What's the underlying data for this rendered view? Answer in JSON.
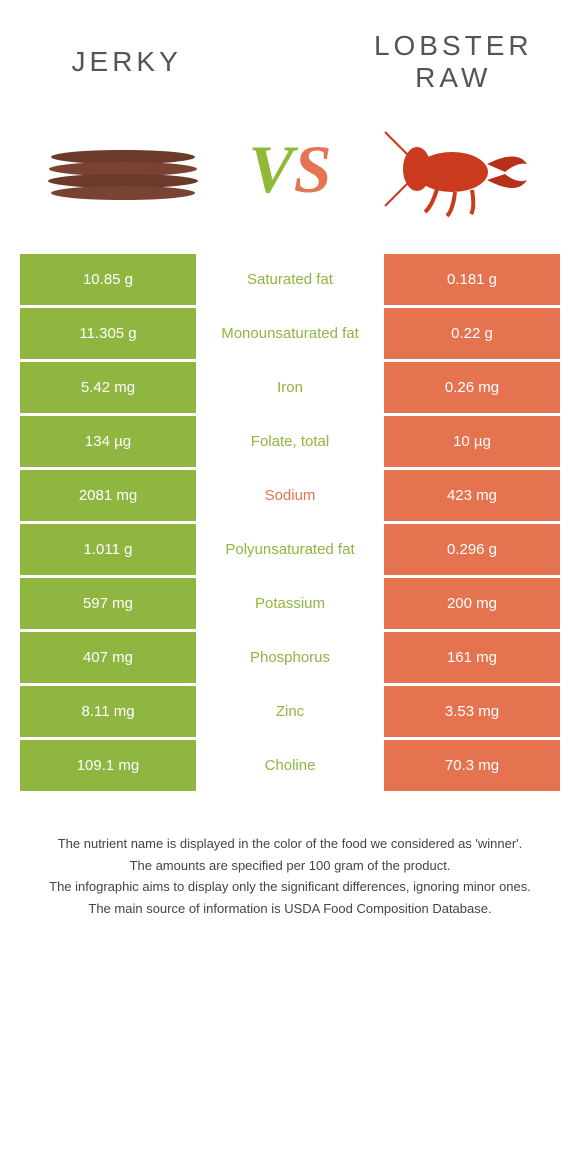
{
  "foods": {
    "left": {
      "name": "Jerky",
      "color": "#8fb936"
    },
    "right": {
      "name": "Lobster Raw",
      "color": "#e67352"
    }
  },
  "vs_label": {
    "v": "V",
    "s": "S"
  },
  "colors": {
    "green": "#8fb936",
    "orange": "#e67352",
    "row_green_bg": "#8fb641",
    "row_orange_bg": "#e5734f",
    "mid_green_text": "#8fb641",
    "mid_orange_text": "#e5734f"
  },
  "rows": [
    {
      "nutrient": "Saturated fat",
      "left": "10.85 g",
      "right": "0.181 g",
      "winner": "left"
    },
    {
      "nutrient": "Monounsaturated fat",
      "left": "11.305 g",
      "right": "0.22 g",
      "winner": "left"
    },
    {
      "nutrient": "Iron",
      "left": "5.42 mg",
      "right": "0.26 mg",
      "winner": "left"
    },
    {
      "nutrient": "Folate, total",
      "left": "134 µg",
      "right": "10 µg",
      "winner": "left"
    },
    {
      "nutrient": "Sodium",
      "left": "2081 mg",
      "right": "423 mg",
      "winner": "right"
    },
    {
      "nutrient": "Polyunsaturated fat",
      "left": "1.011 g",
      "right": "0.296 g",
      "winner": "left"
    },
    {
      "nutrient": "Potassium",
      "left": "597 mg",
      "right": "200 mg",
      "winner": "left"
    },
    {
      "nutrient": "Phosphorus",
      "left": "407 mg",
      "right": "161 mg",
      "winner": "left"
    },
    {
      "nutrient": "Zinc",
      "left": "8.11 mg",
      "right": "3.53 mg",
      "winner": "left"
    },
    {
      "nutrient": "Choline",
      "left": "109.1 mg",
      "right": "70.3 mg",
      "winner": "left"
    }
  ],
  "footer": {
    "line1": "The nutrient name is displayed in the color of the food we considered as 'winner'.",
    "line2": "The amounts are specified per 100 gram of the product.",
    "line3": "The infographic aims to display only the significant differences, ignoring minor ones.",
    "line4": "The main source of information is USDA Food Composition Database."
  }
}
